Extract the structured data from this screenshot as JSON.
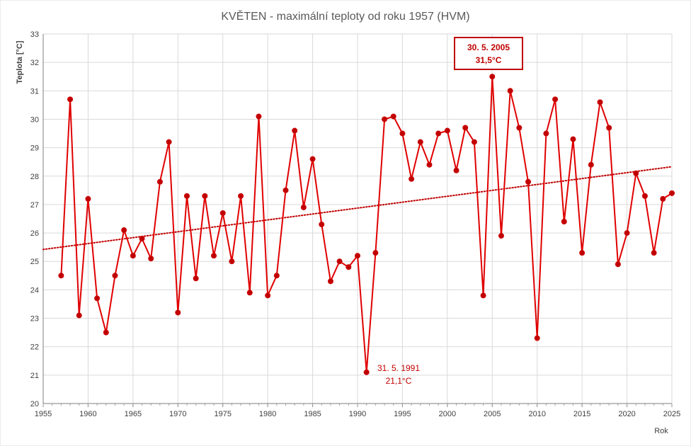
{
  "chart_data": {
    "type": "line",
    "title": "KVĚTEN - maximální teploty od roku 1957 (HVM)",
    "xlabel": "Rok",
    "ylabel": "Teplota [°C]",
    "xlim": [
      1955,
      2025
    ],
    "ylim": [
      20,
      33
    ],
    "xticks": [
      1955,
      1960,
      1965,
      1970,
      1975,
      1980,
      1985,
      1990,
      1995,
      2000,
      2005,
      2010,
      2015,
      2020,
      2025
    ],
    "yticks": [
      20,
      21,
      22,
      23,
      24,
      25,
      26,
      27,
      28,
      29,
      30,
      31,
      32,
      33
    ],
    "grid": true,
    "line_color": "#e00000",
    "trend": {
      "type": "linear",
      "style": "dotted",
      "color": "#c00000",
      "x": [
        1955,
        2025
      ],
      "y": [
        25.42,
        28.33
      ]
    },
    "series": [
      {
        "x": [
          1957,
          1958,
          1959,
          1960,
          1961,
          1962,
          1963,
          1964,
          1965,
          1966,
          1967,
          1968,
          1969,
          1970,
          1971,
          1972,
          1973,
          1974,
          1975,
          1976,
          1977,
          1978,
          1979,
          1980,
          1981,
          1982,
          1983,
          1984,
          1985,
          1986,
          1987,
          1988,
          1989,
          1990,
          1991,
          1992,
          1993,
          1994,
          1995,
          1996,
          1997,
          1998,
          1999,
          2000,
          2001,
          2002,
          2003,
          2004,
          2005,
          2006,
          2007,
          2008,
          2009,
          2010,
          2011,
          2012,
          2013,
          2014,
          2015,
          2016,
          2017,
          2018,
          2019,
          2020,
          2021,
          2022,
          2023,
          2024,
          2025
        ],
        "values": [
          24.5,
          30.7,
          23.1,
          27.2,
          23.7,
          22.5,
          24.5,
          26.1,
          25.2,
          25.8,
          25.1,
          27.8,
          29.2,
          23.2,
          27.3,
          24.4,
          27.3,
          25.2,
          26.7,
          25.0,
          27.3,
          23.9,
          30.1,
          23.8,
          24.5,
          27.5,
          29.6,
          26.9,
          28.6,
          26.3,
          24.3,
          25.0,
          24.8,
          25.2,
          21.1,
          25.3,
          30.0,
          30.1,
          29.5,
          27.9,
          29.2,
          28.4,
          29.5,
          29.6,
          28.2,
          29.7,
          29.2,
          23.8,
          31.5,
          25.9,
          31.0,
          29.7,
          27.8,
          22.3,
          29.5,
          30.7,
          26.4,
          29.3,
          25.3,
          28.4,
          30.6,
          29.7,
          24.9,
          26.0,
          28.1,
          27.3,
          25.3,
          27.2,
          27.4
        ]
      }
    ],
    "annotations": [
      {
        "date": "30. 5. 2005",
        "value": "31,5°C",
        "boxed": true
      },
      {
        "date": "31. 5. 1991",
        "value": "21,1°C",
        "boxed": false
      }
    ]
  }
}
